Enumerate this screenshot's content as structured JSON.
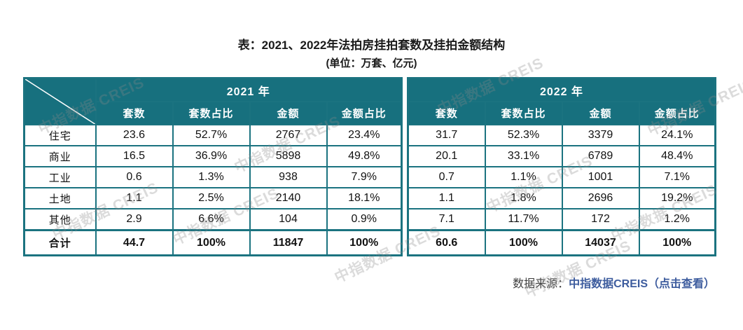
{
  "title": "表：2021、2022年法拍房挂拍套数及挂拍金额结构",
  "subtitle": "(单位：万套、亿元)",
  "colors": {
    "header_teal": "#17707e",
    "border_teal": "#1b7380",
    "link_blue": "#3d5c9e",
    "text_dark": "#1a1a1a"
  },
  "watermark": {
    "text": "中指数据 CREIS"
  },
  "table": {
    "year_groups": [
      "2021 年",
      "2022 年"
    ],
    "sub_headers": [
      "套数",
      "套数占比",
      "金额",
      "金额占比"
    ],
    "rows": [
      {
        "label": "住宅",
        "y2021": [
          "23.6",
          "52.7%",
          "2767",
          "23.4%"
        ],
        "y2022": [
          "31.7",
          "52.3%",
          "3379",
          "24.1%"
        ],
        "bold": false
      },
      {
        "label": "商业",
        "y2021": [
          "16.5",
          "36.9%",
          "5898",
          "49.8%"
        ],
        "y2022": [
          "20.1",
          "33.1%",
          "6789",
          "48.4%"
        ],
        "bold": false
      },
      {
        "label": "工业",
        "y2021": [
          "0.6",
          "1.3%",
          "938",
          "7.9%"
        ],
        "y2022": [
          "0.7",
          "1.1%",
          "1001",
          "7.1%"
        ],
        "bold": false
      },
      {
        "label": "土地",
        "y2021": [
          "1.1",
          "2.5%",
          "2140",
          "18.1%"
        ],
        "y2022": [
          "1.1",
          "1.8%",
          "2696",
          "19.2%"
        ],
        "bold": false
      },
      {
        "label": "其他",
        "y2021": [
          "2.9",
          "6.6%",
          "104",
          "0.9%"
        ],
        "y2022": [
          "7.1",
          "11.7%",
          "172",
          "1.2%"
        ],
        "bold": false
      },
      {
        "label": "合计",
        "y2021": [
          "44.7",
          "100%",
          "11847",
          "100%"
        ],
        "y2022": [
          "60.6",
          "100%",
          "14037",
          "100%"
        ],
        "bold": true
      }
    ]
  },
  "footer": {
    "source_label": "数据来源：",
    "source_link": "中指数据CREIS（点击查看）"
  },
  "chart_data": {
    "type": "table",
    "title": "表：2021、2022年法拍房挂拍套数及挂拍金额结构",
    "subtitle": "(单位：万套、亿元)",
    "column_groups": [
      "2021 年",
      "2022 年"
    ],
    "columns": [
      "套数",
      "套数占比",
      "金额",
      "金额占比",
      "套数",
      "套数占比",
      "金额",
      "金额占比"
    ],
    "row_labels": [
      "住宅",
      "商业",
      "工业",
      "土地",
      "其他",
      "合计"
    ],
    "rows": [
      [
        23.6,
        "52.7%",
        2767,
        "23.4%",
        31.7,
        "52.3%",
        3379,
        "24.1%"
      ],
      [
        16.5,
        "36.9%",
        5898,
        "49.8%",
        20.1,
        "33.1%",
        6789,
        "48.4%"
      ],
      [
        0.6,
        "1.3%",
        938,
        "7.9%",
        0.7,
        "1.1%",
        1001,
        "7.1%"
      ],
      [
        1.1,
        "2.5%",
        2140,
        "18.1%",
        1.1,
        "1.8%",
        2696,
        "19.2%"
      ],
      [
        2.9,
        "6.6%",
        104,
        "0.9%",
        7.1,
        "11.7%",
        172,
        "1.2%"
      ],
      [
        44.7,
        "100%",
        11847,
        "100%",
        60.6,
        "100%",
        14037,
        "100%"
      ]
    ],
    "source": "数据来源：中指数据CREIS（点击查看）"
  }
}
